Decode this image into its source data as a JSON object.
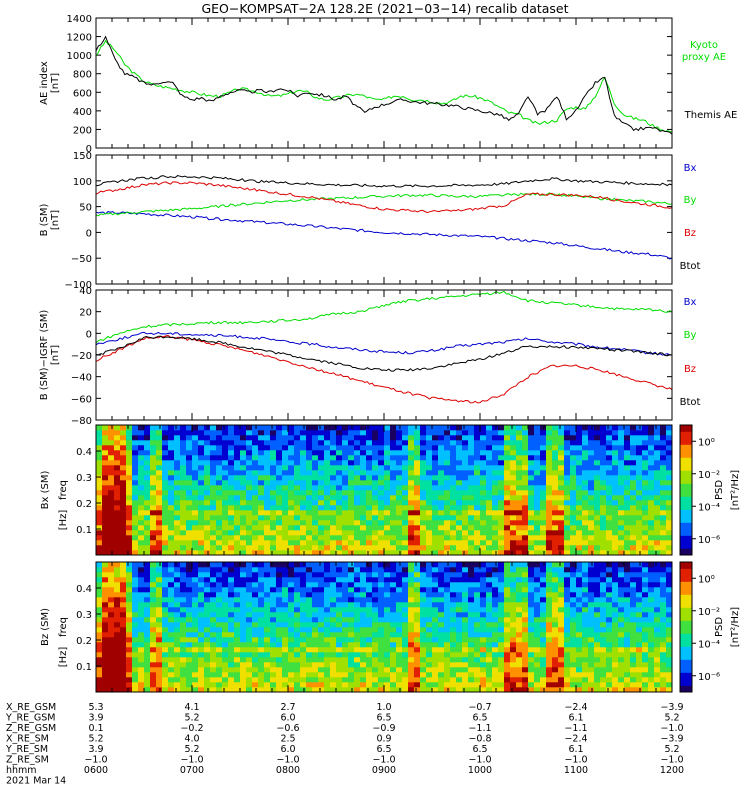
{
  "title": "GEO−KOMPSAT−2A 128.2E (2021−03−14) recalib dataset",
  "chart_data": [
    {
      "type": "line",
      "panel": "ae",
      "ylabel": "AE index",
      "yunit": "[nT]",
      "ylim": [
        0,
        1400
      ],
      "yticks": [
        "0",
        "200",
        "400",
        "600",
        "800",
        "1000",
        "1200",
        "1400"
      ],
      "x_hours": [
        6.0,
        6.1,
        6.2,
        6.3,
        6.4,
        6.5,
        6.6,
        6.7,
        6.8,
        6.9,
        7.0,
        7.1,
        7.2,
        7.3,
        7.4,
        7.5,
        7.6,
        7.7,
        7.8,
        7.9,
        8.0,
        8.1,
        8.2,
        8.3,
        8.4,
        8.5,
        8.6,
        8.7,
        8.8,
        8.9,
        9.0,
        9.1,
        9.2,
        9.3,
        9.4,
        9.5,
        9.6,
        9.7,
        9.8,
        9.9,
        10.0,
        10.1,
        10.2,
        10.3,
        10.4,
        10.5,
        10.6,
        10.7,
        10.8,
        10.9,
        11.0,
        11.1,
        11.2,
        11.3,
        11.4,
        11.5,
        11.6,
        11.7,
        11.8,
        11.9,
        12.0
      ],
      "series": [
        {
          "name": "Kyoto proxy AE",
          "color": "#00dd00",
          "values": [
            1000,
            1150,
            1050,
            900,
            800,
            720,
            680,
            660,
            640,
            620,
            600,
            580,
            560,
            560,
            600,
            640,
            620,
            600,
            560,
            560,
            580,
            620,
            600,
            540,
            520,
            540,
            560,
            580,
            560,
            520,
            520,
            560,
            560,
            520,
            520,
            500,
            480,
            500,
            560,
            560,
            540,
            500,
            440,
            380,
            360,
            300,
            260,
            280,
            300,
            420,
            440,
            420,
            560,
            760,
            480,
            360,
            320,
            300,
            240,
            200,
            170
          ]
        },
        {
          "name": "Themis AE",
          "color": "#000000",
          "values": [
            1050,
            1200,
            950,
            800,
            760,
            700,
            680,
            720,
            700,
            560,
            520,
            540,
            500,
            560,
            600,
            620,
            600,
            620,
            600,
            640,
            620,
            560,
            600,
            580,
            560,
            520,
            560,
            460,
            380,
            440,
            470,
            500,
            520,
            500,
            490,
            480,
            470,
            460,
            440,
            420,
            400,
            380,
            360,
            300,
            360,
            560,
            360,
            420,
            560,
            320,
            400,
            560,
            700,
            760,
            340,
            260,
            200,
            210,
            220,
            180,
            150
          ]
        }
      ]
    },
    {
      "type": "line",
      "panel": "b_sm",
      "ylabel": "B (SM)",
      "yunit": "[nT]",
      "ylim": [
        -100,
        150
      ],
      "yticks": [
        "−100",
        "−50",
        "0",
        "50",
        "100",
        "150"
      ],
      "x_hours": [
        6.0,
        6.25,
        6.5,
        6.75,
        7.0,
        7.25,
        7.5,
        7.75,
        8.0,
        8.25,
        8.5,
        8.75,
        9.0,
        9.25,
        9.5,
        9.75,
        10.0,
        10.25,
        10.5,
        10.75,
        11.0,
        11.25,
        11.5,
        11.75,
        12.0
      ],
      "series": [
        {
          "name": "Bx",
          "color": "#0000cc",
          "values": [
            38,
            38,
            36,
            33,
            30,
            26,
            23,
            19,
            16,
            12,
            8,
            4,
            0,
            -2,
            -4,
            -6,
            -8,
            -12,
            -16,
            -20,
            -26,
            -32,
            -38,
            -42,
            -50
          ]
        },
        {
          "name": "By",
          "color": "#00dd00",
          "values": [
            33,
            37,
            40,
            43,
            46,
            50,
            54,
            58,
            62,
            64,
            66,
            68,
            70,
            72,
            72,
            70,
            70,
            72,
            74,
            74,
            70,
            66,
            62,
            60,
            55
          ]
        },
        {
          "name": "Bz",
          "color": "#dd0000",
          "values": [
            76,
            84,
            92,
            96,
            96,
            92,
            86,
            80,
            74,
            68,
            60,
            52,
            45,
            42,
            40,
            42,
            46,
            52,
            74,
            74,
            72,
            68,
            60,
            54,
            48
          ]
        },
        {
          "name": "Btot",
          "color": "#000000",
          "values": [
            92,
            100,
            105,
            108,
            108,
            106,
            102,
            98,
            96,
            94,
            92,
            91,
            90,
            90,
            90,
            91,
            92,
            94,
            100,
            104,
            100,
            98,
            96,
            94,
            92
          ]
        }
      ]
    },
    {
      "type": "line",
      "panel": "b_sm_igrf",
      "ylabel": "B (SM)−IGRF (SM)",
      "yunit": "[nT]",
      "ylim": [
        -80,
        40
      ],
      "yticks": [
        "−80",
        "−60",
        "−40",
        "−20",
        "0",
        "20",
        "40"
      ],
      "x_hours": [
        6.0,
        6.25,
        6.5,
        6.75,
        7.0,
        7.25,
        7.5,
        7.75,
        8.0,
        8.25,
        8.5,
        8.75,
        9.0,
        9.25,
        9.5,
        9.75,
        10.0,
        10.25,
        10.5,
        10.75,
        11.0,
        11.25,
        11.5,
        11.75,
        12.0
      ],
      "series": [
        {
          "name": "Bx",
          "color": "#0000cc",
          "values": [
            -10,
            -5,
            0,
            0,
            -1,
            -2,
            -3,
            -5,
            -8,
            -10,
            -13,
            -15,
            -17,
            -18,
            -16,
            -12,
            -10,
            -8,
            -5,
            -8,
            -10,
            -13,
            -15,
            -18,
            -20
          ]
        },
        {
          "name": "By",
          "color": "#00dd00",
          "values": [
            -8,
            0,
            6,
            8,
            9,
            10,
            10,
            11,
            12,
            14,
            18,
            20,
            26,
            30,
            32,
            34,
            36,
            38,
            30,
            28,
            26,
            24,
            22,
            22,
            20
          ]
        },
        {
          "name": "Bz",
          "color": "#dd0000",
          "values": [
            -25,
            -15,
            -5,
            -3,
            -6,
            -10,
            -15,
            -20,
            -26,
            -32,
            -38,
            -44,
            -50,
            -55,
            -60,
            -62,
            -64,
            -56,
            -40,
            -30,
            -30,
            -34,
            -40,
            -46,
            -52
          ]
        },
        {
          "name": "Btot",
          "color": "#000000",
          "values": [
            -20,
            -14,
            -4,
            -3,
            -5,
            -8,
            -12,
            -16,
            -20,
            -24,
            -28,
            -32,
            -34,
            -34,
            -32,
            -28,
            -24,
            -18,
            -12,
            -12,
            -13,
            -14,
            -16,
            -18,
            -20
          ]
        }
      ]
    },
    {
      "type": "heatmap",
      "panel": "bx_spec",
      "ylabel": "Bx (SM)",
      "y2label": "freq",
      "yunit": "[Hz]",
      "ylim": [
        0,
        0.5
      ],
      "yticks": [
        "0.1",
        "0.2",
        "0.3",
        "0.4"
      ],
      "colorbar_label": "PSD",
      "colorbar_unit": "[nT²/Hz]",
      "colorbar_ticks": [
        "10⁰",
        "10⁻²",
        "10⁻⁴",
        "10⁻⁶"
      ],
      "colorbar_range_log10": [
        -7,
        1
      ]
    },
    {
      "type": "heatmap",
      "panel": "bz_spec",
      "ylabel": "Bz (SM)",
      "y2label": "freq",
      "yunit": "[Hz]",
      "ylim": [
        0,
        0.5
      ],
      "yticks": [
        "0.1",
        "0.2",
        "0.3",
        "0.4"
      ],
      "colorbar_label": "PSD",
      "colorbar_unit": "[nT²/Hz]",
      "colorbar_ticks": [
        "10⁰",
        "10⁻²",
        "10⁻⁴",
        "10⁻⁶"
      ],
      "colorbar_range_log10": [
        -7,
        1
      ]
    }
  ],
  "orbit_table": {
    "rows": [
      {
        "label": "X_RE_GSM",
        "values": [
          "5.3",
          "4.1",
          "2.7",
          "1.0",
          "−0.7",
          "−2.4",
          "−3.9"
        ]
      },
      {
        "label": "Y_RE_GSM",
        "values": [
          "3.9",
          "5.2",
          "6.0",
          "6.5",
          "6.5",
          "6.1",
          "5.2"
        ]
      },
      {
        "label": "Z_RE_GSM",
        "values": [
          "0.1",
          "−0.2",
          "−0.6",
          "−0.9",
          "−1.1",
          "−1.1",
          "−1.0"
        ]
      },
      {
        "label": "X_RE_SM",
        "values": [
          "5.2",
          "4.0",
          "2.5",
          "0.9",
          "−0.8",
          "−2.4",
          "−3.9"
        ]
      },
      {
        "label": "Y_RE_SM",
        "values": [
          "3.9",
          "5.2",
          "6.0",
          "6.5",
          "6.5",
          "6.1",
          "5.2"
        ]
      },
      {
        "label": "Z_RE_SM",
        "values": [
          "−1.0",
          "−1.0",
          "−1.0",
          "−1.0",
          "−1.0",
          "−1.0",
          "−1.0"
        ]
      },
      {
        "label": "hhmm",
        "values": [
          "0600",
          "0700",
          "0800",
          "0900",
          "1000",
          "1100",
          "1200"
        ]
      }
    ],
    "date": "2021 Mar 14"
  }
}
